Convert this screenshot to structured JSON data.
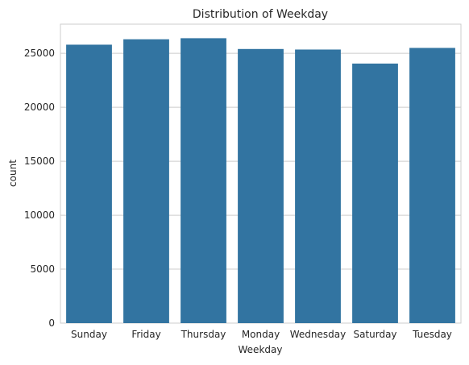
{
  "chart_data": {
    "type": "bar",
    "title": "Distribution of Weekday",
    "xlabel": "Weekday",
    "ylabel": "count",
    "categories": [
      "Sunday",
      "Friday",
      "Thursday",
      "Monday",
      "Wednesday",
      "Saturday",
      "Tuesday"
    ],
    "values": [
      25800,
      26300,
      26400,
      25400,
      25350,
      24050,
      25500
    ],
    "ylim": [
      0,
      27700
    ],
    "yticks": [
      0,
      5000,
      10000,
      15000,
      20000,
      25000
    ],
    "grid": "horizontal",
    "bar_color": "#3274a1",
    "grid_color": "#cccccc",
    "background_color": "#ffffff"
  }
}
